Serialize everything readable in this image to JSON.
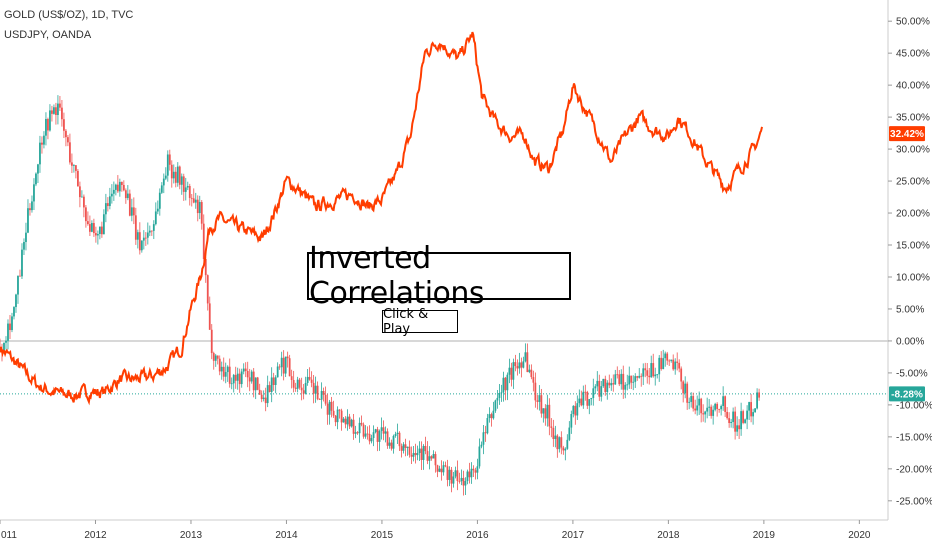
{
  "legend": {
    "symbol_1": "GOLD (US$/OZ), 1D, TVC",
    "symbol_2": "USDJPY, OANDA"
  },
  "overlay": {
    "title": "Inverted Correlations",
    "button": "Click & Play"
  },
  "colors": {
    "gold_line": "#ff3d00",
    "usdjpy_up": "#26a69a",
    "usdjpy_down": "#ef5350",
    "gold_badge": "#ff3d00",
    "usdjpy_badge": "#26a69a",
    "zero_line": "#9e9e9e"
  },
  "chart_data": {
    "type": "line",
    "y_unit": "%",
    "ylim": [
      -28,
      53
    ],
    "xlim": [
      2011.0,
      2020.3
    ],
    "y_ticks": [
      "50.00%",
      "45.00%",
      "40.00%",
      "35.00%",
      "30.00%",
      "25.00%",
      "20.00%",
      "15.00%",
      "10.00%",
      "5.00%",
      "0.00%",
      "-5.00%",
      "-10.00%",
      "-15.00%",
      "-20.00%",
      "-25.00%"
    ],
    "x_ticks": [
      "011",
      "2012",
      "2013",
      "2014",
      "2015",
      "2016",
      "2017",
      "2018",
      "2019",
      "2020"
    ],
    "last_values": {
      "gold": "32.42%",
      "usdjpy": "-8.28%"
    },
    "series": [
      {
        "name": "GOLD (US$/OZ), 1D, TVC",
        "style": "line",
        "x": [
          2011.0,
          2011.2,
          2011.4,
          2011.55,
          2011.75,
          2011.95,
          2012.1,
          2012.25,
          2012.4,
          2012.6,
          2012.75,
          2012.9,
          2013.0,
          2013.1,
          2013.2,
          2013.3,
          2013.45,
          2013.6,
          2013.75,
          2013.9,
          2014.0,
          2014.1,
          2014.3,
          2014.5,
          2014.7,
          2014.85,
          2015.0,
          2015.15,
          2015.3,
          2015.45,
          2015.6,
          2015.8,
          2015.95,
          2016.05,
          2016.2,
          2016.35,
          2016.5,
          2016.6,
          2016.75,
          2016.9,
          2017.0,
          2017.1,
          2017.25,
          2017.4,
          2017.55,
          2017.7,
          2017.85,
          2018.0,
          2018.1,
          2018.2,
          2018.4,
          2018.6,
          2018.75,
          2018.9,
          2018.98
        ],
        "y": [
          -1,
          -4,
          -7,
          -8,
          -8.5,
          -8,
          -8,
          -6,
          -6,
          -5.5,
          -4,
          -1,
          5,
          10,
          18,
          19,
          18,
          17,
          16,
          21,
          25,
          24,
          21,
          22,
          23,
          21,
          22,
          26,
          32,
          45,
          47,
          44,
          48,
          38,
          34,
          32,
          32,
          28,
          27,
          33,
          40,
          37,
          33,
          28,
          32,
          35,
          33,
          32,
          35,
          33,
          28,
          24,
          27,
          30,
          33
        ]
      },
      {
        "name": "USDJPY, OANDA",
        "style": "candles",
        "x": [
          2011.0,
          2011.15,
          2011.3,
          2011.45,
          2011.6,
          2011.75,
          2011.9,
          2012.0,
          2012.15,
          2012.3,
          2012.45,
          2012.6,
          2012.75,
          2012.9,
          2013.0,
          2013.1,
          2013.2,
          2013.3,
          2013.45,
          2013.6,
          2013.75,
          2013.9,
          2014.0,
          2014.1,
          2014.25,
          2014.4,
          2014.6,
          2014.8,
          2015.0,
          2015.2,
          2015.4,
          2015.6,
          2015.8,
          2015.95,
          2016.05,
          2016.2,
          2016.35,
          2016.5,
          2016.6,
          2016.75,
          2016.9,
          2017.0,
          2017.2,
          2017.4,
          2017.6,
          2017.8,
          2018.0,
          2018.1,
          2018.25,
          2018.4,
          2018.55,
          2018.7,
          2018.85,
          2018.95
        ],
        "y": [
          -1,
          5,
          20,
          33,
          37,
          28,
          20,
          15,
          22,
          25,
          15,
          18,
          28,
          25,
          22,
          20,
          0,
          -4,
          -6,
          -5,
          -9,
          -5,
          -3,
          -7,
          -7,
          -10,
          -12,
          -14,
          -15,
          -16,
          -17,
          -20,
          -22,
          -21,
          -16,
          -9,
          -5,
          -2,
          -8,
          -12,
          -18,
          -11,
          -8,
          -6,
          -7,
          -5,
          -3,
          -5,
          -10,
          -11,
          -9,
          -13,
          -11,
          -8
        ]
      }
    ]
  }
}
